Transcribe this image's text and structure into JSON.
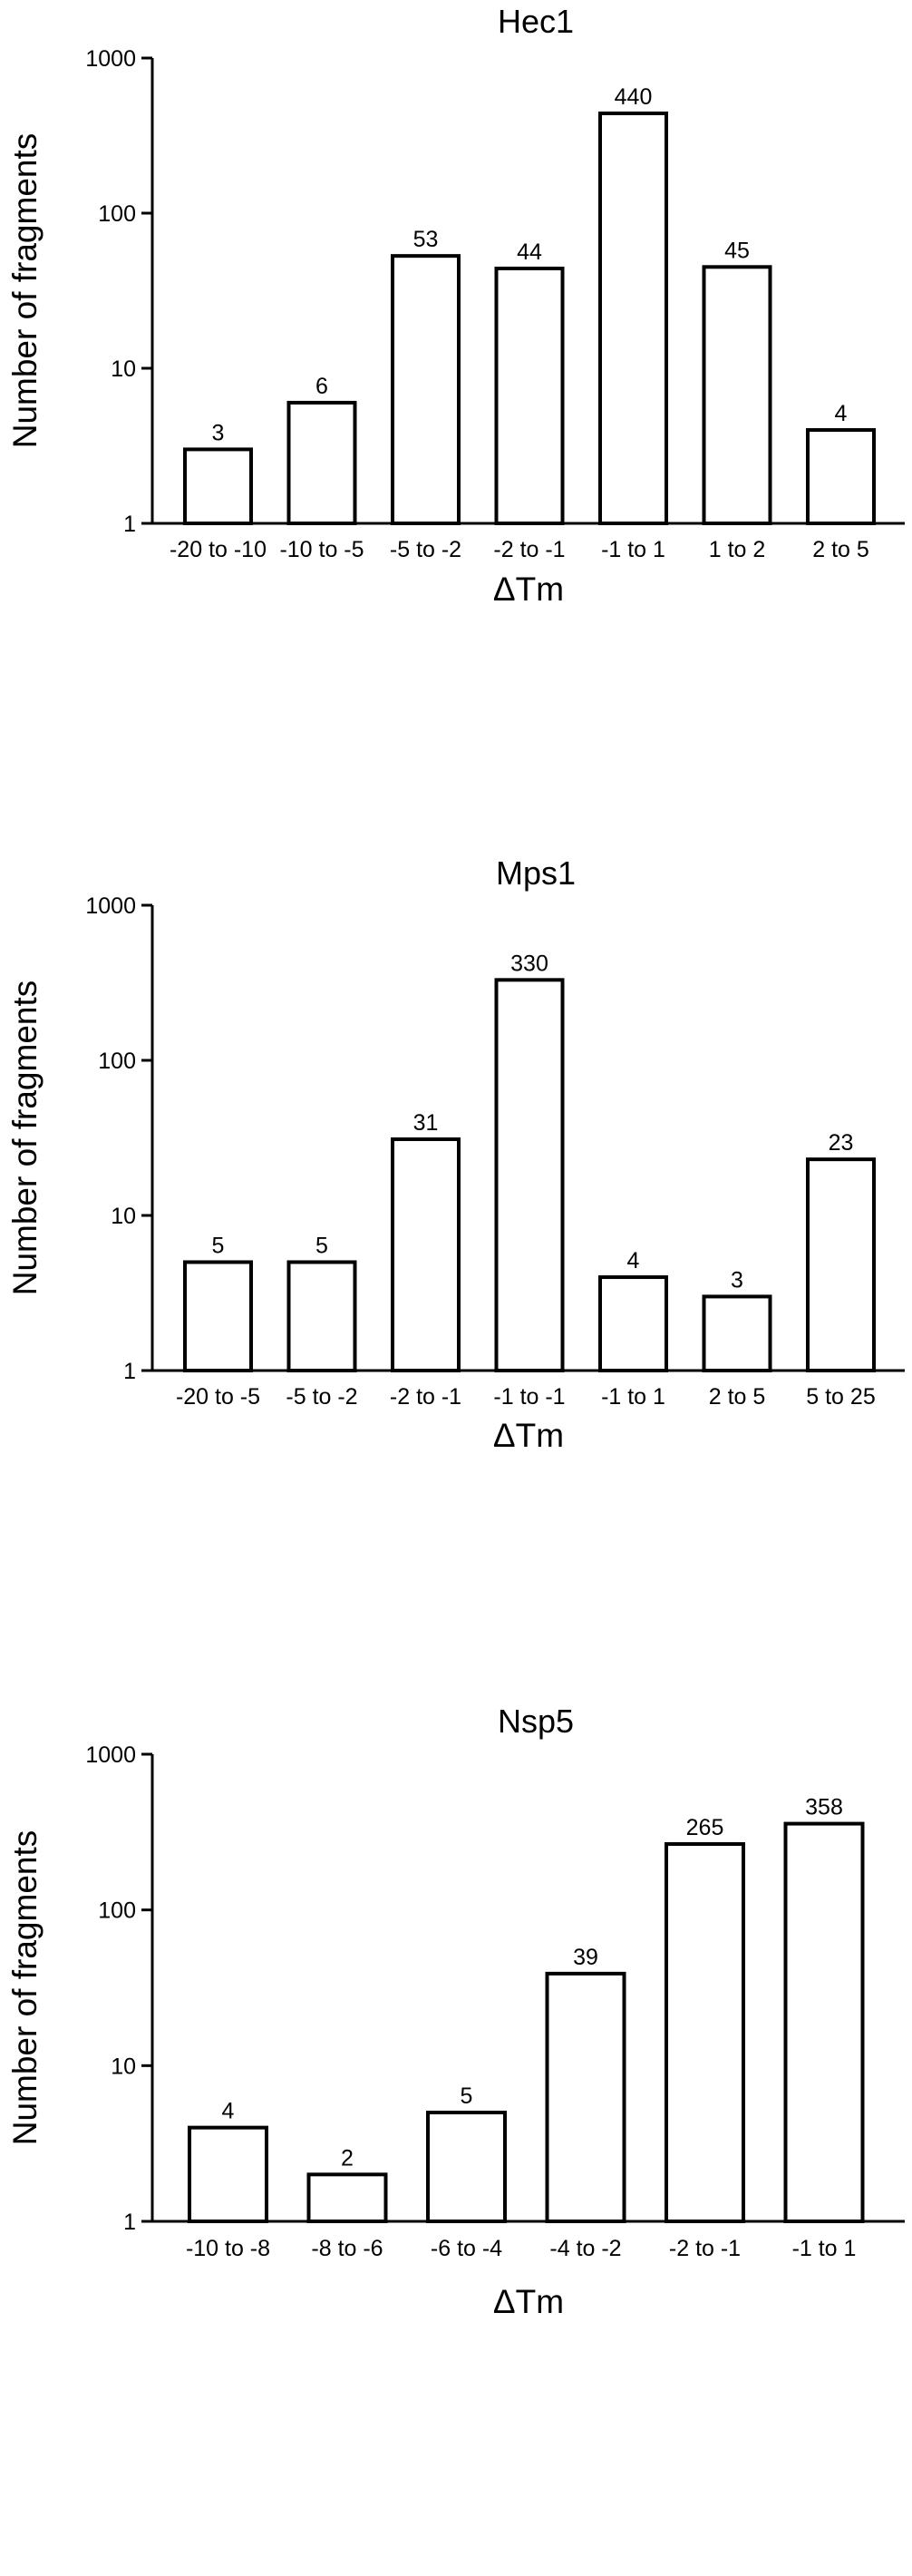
{
  "chart_data": [
    {
      "type": "bar",
      "title": "Hec1",
      "xlabel": "ΔTm",
      "ylabel": "Number of fragments",
      "yscale": "log",
      "ylim": [
        1,
        1000
      ],
      "yticks": [
        1,
        10,
        100,
        1000
      ],
      "ytick_labels": [
        "1",
        "10",
        "100",
        "1000"
      ],
      "categories": [
        "-20 to -10",
        "-10 to -5",
        "-5 to -2",
        "-2 to -1",
        "-1 to 1",
        "1 to 2",
        "2 to 5"
      ],
      "values": [
        3,
        6,
        53,
        44,
        440,
        45,
        4
      ],
      "value_labels": [
        "3",
        "6",
        "53",
        "44",
        "440",
        "45",
        "4"
      ],
      "grid": false,
      "legend": "none"
    },
    {
      "type": "bar",
      "title": "Mps1",
      "xlabel": "ΔTm",
      "ylabel": "Number of fragments",
      "yscale": "log",
      "ylim": [
        1,
        1000
      ],
      "yticks": [
        1,
        10,
        100,
        1000
      ],
      "ytick_labels": [
        "1",
        "10",
        "100",
        "1000"
      ],
      "categories": [
        "-20 to -5",
        "-5 to -2",
        "-2 to -1",
        "-1 to -1",
        "-1 to 1",
        "2 to 5",
        "5 to 25"
      ],
      "values": [
        5,
        5,
        31,
        330,
        4,
        3,
        23
      ],
      "value_labels": [
        "5",
        "5",
        "31",
        "330",
        "4",
        "3",
        "23"
      ],
      "grid": false,
      "legend": "none"
    },
    {
      "type": "bar",
      "title": "Nsp5",
      "xlabel": "ΔTm",
      "ylabel": "Number of fragments",
      "yscale": "log",
      "ylim": [
        1,
        1000
      ],
      "yticks": [
        1,
        10,
        100,
        1000
      ],
      "ytick_labels": [
        "1",
        "10",
        "100",
        "1000"
      ],
      "categories": [
        "-10 to -8",
        "-8 to -6",
        "-6 to -4",
        "-4 to -2",
        "-2 to -1",
        "-1 to 1"
      ],
      "values": [
        4,
        2,
        5,
        39,
        265,
        358
      ],
      "value_labels": [
        "4",
        "2",
        "5",
        "39",
        "265",
        "358"
      ],
      "grid": false,
      "legend": "none"
    }
  ]
}
